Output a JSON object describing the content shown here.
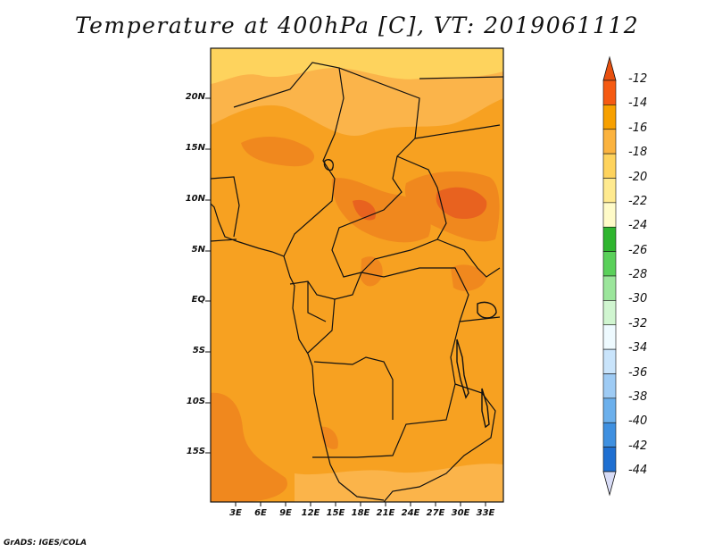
{
  "title": "Temperature at 400hPa [C], VT: 2019061112",
  "credit": "GrADS: IGES/COLA",
  "map": {
    "lat_labels": [
      "20N",
      "15N",
      "10N",
      "5N",
      "EQ",
      "5S",
      "10S",
      "15S"
    ],
    "lon_labels": [
      "3E",
      "6E",
      "9E",
      "12E",
      "15E",
      "18E",
      "21E",
      "24E",
      "27E",
      "30E",
      "33E"
    ]
  },
  "colorbar": {
    "labels": [
      "-12",
      "-14",
      "-16",
      "-18",
      "-20",
      "-22",
      "-24",
      "-26",
      "-28",
      "-30",
      "-32",
      "-34",
      "-36",
      "-38",
      "-40",
      "-42",
      "-44"
    ],
    "colors": [
      "#ffffd4",
      "#ffeda0",
      "#fed976",
      "#feb24c",
      "#fda433",
      "#f77e1b",
      "#e8500f",
      "#1fa31f",
      "#3dc33d",
      "#7edd7e",
      "#b7f0b7",
      "#e6f7ff",
      "#c7e3fb",
      "#9ccaf4",
      "#6aaeeb",
      "#3d8fe0",
      "#1f6fd1",
      "#1150b8",
      "#0a2e8c",
      "#06126a",
      "#d8dcf6"
    ]
  },
  "fills": {
    "cold": "#fed35d",
    "mid": "#fbb44a",
    "base": "#f7a121",
    "warm": "#f0881e",
    "hot": "#e8621f"
  }
}
